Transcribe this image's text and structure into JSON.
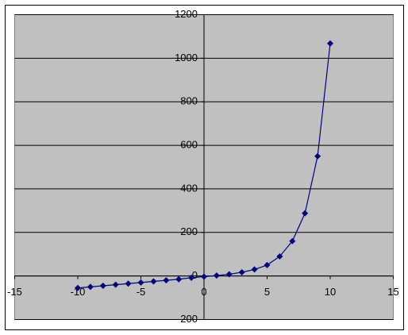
{
  "chart_data": {
    "type": "scatter",
    "x": [
      -10,
      -9,
      -8,
      -7,
      -6,
      -5,
      -4,
      -3,
      -2,
      -1,
      0,
      1,
      2,
      3,
      4,
      5,
      6,
      7,
      8,
      9,
      10
    ],
    "series": [
      {
        "color": "#000080",
        "values": [
          -55,
          -50,
          -45,
          -40,
          -35,
          -30,
          -25,
          -20,
          -15,
          -8,
          -3,
          2,
          8,
          17,
          30,
          50,
          90,
          160,
          288,
          550,
          1068
        ]
      }
    ],
    "xlim": [
      -15,
      15
    ],
    "xticks": [
      -15,
      -10,
      -5,
      0,
      5,
      10,
      15
    ],
    "ylim": [
      -200,
      1200
    ],
    "yticks": [
      -200,
      0,
      200,
      400,
      600,
      800,
      1000,
      1200
    ],
    "grid": true
  }
}
